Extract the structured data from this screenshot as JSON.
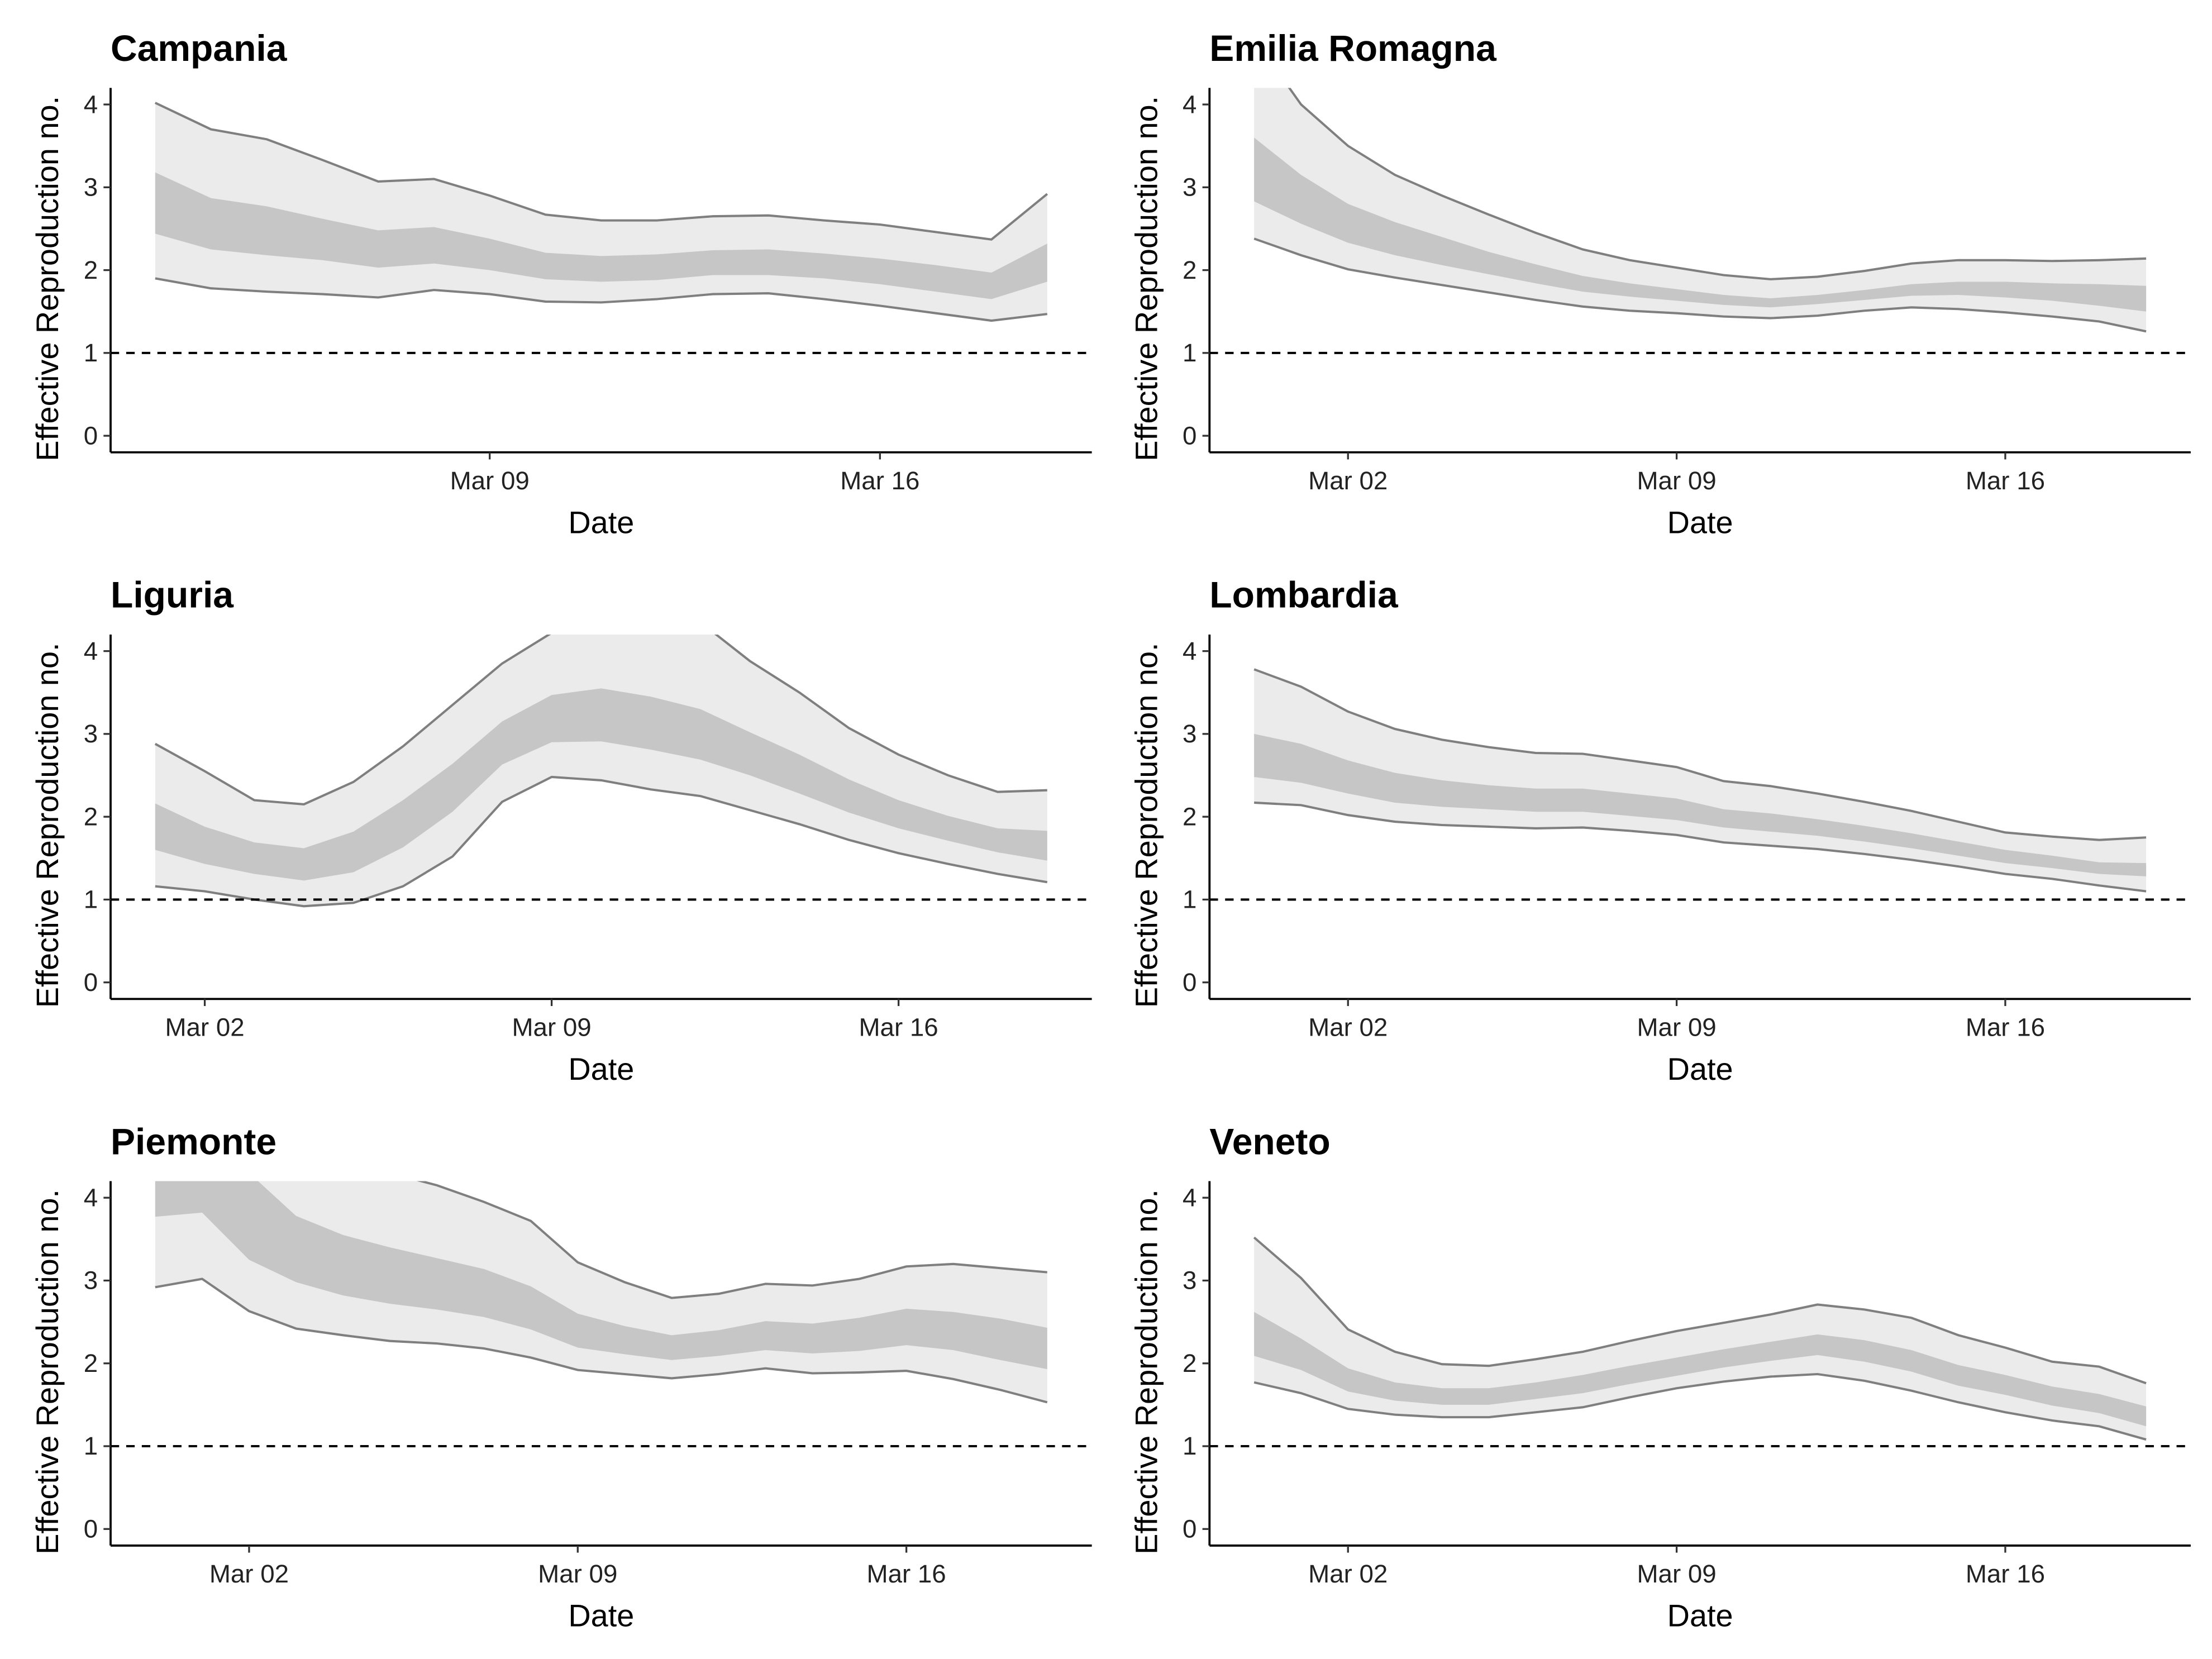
{
  "chart_data": [
    {
      "type": "band",
      "title": "Campania",
      "xlabel": "Date",
      "ylabel": "Effective Reproduction no.",
      "x": [
        "Mar 03",
        "Mar 04",
        "Mar 05",
        "Mar 06",
        "Mar 07",
        "Mar 08",
        "Mar 09",
        "Mar 10",
        "Mar 11",
        "Mar 12",
        "Mar 13",
        "Mar 14",
        "Mar 15",
        "Mar 16",
        "Mar 17",
        "Mar 18",
        "Mar 19"
      ],
      "xticks": [
        "Mar 09",
        "Mar 16"
      ],
      "ylim": [
        -0.2,
        4.2
      ],
      "yticks": [
        0,
        1,
        2,
        3,
        4
      ],
      "hline": 1,
      "series": [
        {
          "color": "#ebebeb",
          "outline": "#7f7f7f",
          "upper": [
            4.02,
            3.7,
            3.58,
            3.33,
            3.07,
            3.1,
            2.9,
            2.67,
            2.6,
            2.6,
            2.65,
            2.66,
            2.6,
            2.55,
            2.46,
            2.37,
            2.92
          ],
          "lower": [
            1.9,
            1.78,
            1.74,
            1.71,
            1.67,
            1.76,
            1.71,
            1.62,
            1.61,
            1.65,
            1.71,
            1.72,
            1.65,
            1.57,
            1.48,
            1.39,
            1.47
          ]
        },
        {
          "color": "#c6c6c6",
          "upper": [
            3.18,
            2.87,
            2.77,
            2.62,
            2.48,
            2.52,
            2.38,
            2.21,
            2.17,
            2.19,
            2.24,
            2.25,
            2.2,
            2.14,
            2.06,
            1.97,
            2.32
          ],
          "lower": [
            2.44,
            2.25,
            2.18,
            2.12,
            2.03,
            2.08,
            2.0,
            1.89,
            1.86,
            1.88,
            1.94,
            1.94,
            1.9,
            1.83,
            1.74,
            1.65,
            1.86
          ]
        }
      ]
    },
    {
      "type": "band",
      "title": "Emilia Romagna",
      "xlabel": "Date",
      "ylabel": "Effective Reproduction no.",
      "x": [
        "Feb 29",
        "Mar 01",
        "Mar 02",
        "Mar 03",
        "Mar 04",
        "Mar 05",
        "Mar 06",
        "Mar 07",
        "Mar 08",
        "Mar 09",
        "Mar 10",
        "Mar 11",
        "Mar 12",
        "Mar 13",
        "Mar 14",
        "Mar 15",
        "Mar 16",
        "Mar 17",
        "Mar 18",
        "Mar 19"
      ],
      "xticks": [
        "Mar 02",
        "Mar 09",
        "Mar 16"
      ],
      "ylim": [
        -0.2,
        4.2
      ],
      "yticks": [
        0,
        1,
        2,
        3,
        4
      ],
      "hline": 1,
      "series": [
        {
          "color": "#ebebeb",
          "outline": "#7f7f7f",
          "upper": [
            4.8,
            4.0,
            3.5,
            3.15,
            2.9,
            2.67,
            2.45,
            2.25,
            2.12,
            2.03,
            1.94,
            1.89,
            1.92,
            1.99,
            2.08,
            2.12,
            2.12,
            2.11,
            2.12,
            2.14
          ],
          "lower": [
            2.38,
            2.18,
            2.01,
            1.91,
            1.82,
            1.73,
            1.64,
            1.56,
            1.51,
            1.48,
            1.44,
            1.42,
            1.45,
            1.51,
            1.55,
            1.53,
            1.49,
            1.44,
            1.38,
            1.26
          ]
        },
        {
          "color": "#c6c6c6",
          "upper": [
            3.6,
            3.15,
            2.8,
            2.58,
            2.4,
            2.22,
            2.07,
            1.93,
            1.84,
            1.77,
            1.7,
            1.66,
            1.7,
            1.76,
            1.83,
            1.86,
            1.86,
            1.84,
            1.83,
            1.81
          ],
          "lower": [
            2.83,
            2.56,
            2.33,
            2.18,
            2.06,
            1.95,
            1.84,
            1.74,
            1.68,
            1.63,
            1.58,
            1.55,
            1.59,
            1.64,
            1.69,
            1.7,
            1.67,
            1.63,
            1.57,
            1.5
          ]
        }
      ]
    },
    {
      "type": "band",
      "title": "Liguria",
      "xlabel": "Date",
      "ylabel": "Effective Reproduction no.",
      "x": [
        "Mar 01",
        "Mar 02",
        "Mar 03",
        "Mar 04",
        "Mar 05",
        "Mar 06",
        "Mar 07",
        "Mar 08",
        "Mar 09",
        "Mar 10",
        "Mar 11",
        "Mar 12",
        "Mar 13",
        "Mar 14",
        "Mar 15",
        "Mar 16",
        "Mar 17",
        "Mar 18",
        "Mar 19"
      ],
      "xticks": [
        "Mar 02",
        "Mar 09",
        "Mar 16"
      ],
      "ylim": [
        -0.2,
        4.2
      ],
      "yticks": [
        0,
        1,
        2,
        3,
        4
      ],
      "hline": 1,
      "series": [
        {
          "color": "#ebebeb",
          "outline": "#7f7f7f",
          "upper": [
            2.88,
            2.55,
            2.2,
            2.15,
            2.42,
            2.85,
            3.35,
            3.85,
            4.22,
            4.4,
            4.45,
            4.35,
            3.88,
            3.5,
            3.07,
            2.75,
            2.5,
            2.3,
            2.32
          ],
          "lower": [
            1.16,
            1.1,
            1.0,
            0.92,
            0.96,
            1.16,
            1.52,
            2.18,
            2.48,
            2.44,
            2.33,
            2.25,
            2.08,
            1.91,
            1.72,
            1.56,
            1.43,
            1.31,
            1.21
          ]
        },
        {
          "color": "#c6c6c6",
          "upper": [
            2.16,
            1.88,
            1.69,
            1.62,
            1.82,
            2.2,
            2.64,
            3.15,
            3.47,
            3.55,
            3.45,
            3.3,
            3.02,
            2.75,
            2.45,
            2.2,
            2.01,
            1.86,
            1.83
          ],
          "lower": [
            1.6,
            1.43,
            1.31,
            1.23,
            1.33,
            1.63,
            2.06,
            2.63,
            2.9,
            2.91,
            2.81,
            2.69,
            2.5,
            2.28,
            2.05,
            1.86,
            1.71,
            1.57,
            1.47
          ]
        }
      ]
    },
    {
      "type": "band",
      "title": "Lombardia",
      "xlabel": "Date",
      "ylabel": "Effective Reproduction no.",
      "x": [
        "Feb 29",
        "Mar 01",
        "Mar 02",
        "Mar 03",
        "Mar 04",
        "Mar 05",
        "Mar 06",
        "Mar 07",
        "Mar 08",
        "Mar 09",
        "Mar 10",
        "Mar 11",
        "Mar 12",
        "Mar 13",
        "Mar 14",
        "Mar 15",
        "Mar 16",
        "Mar 17",
        "Mar 18",
        "Mar 19"
      ],
      "xticks": [
        "Mar 02",
        "Mar 09",
        "Mar 16"
      ],
      "ylim": [
        -0.2,
        4.2
      ],
      "yticks": [
        0,
        1,
        2,
        3,
        4
      ],
      "hline": 1,
      "series": [
        {
          "color": "#ebebeb",
          "outline": "#7f7f7f",
          "upper": [
            3.78,
            3.57,
            3.27,
            3.06,
            2.93,
            2.84,
            2.77,
            2.76,
            2.68,
            2.6,
            2.43,
            2.37,
            2.28,
            2.18,
            2.07,
            1.94,
            1.81,
            1.76,
            1.72,
            1.75
          ],
          "lower": [
            2.17,
            2.14,
            2.02,
            1.94,
            1.9,
            1.88,
            1.86,
            1.87,
            1.83,
            1.78,
            1.69,
            1.65,
            1.61,
            1.55,
            1.48,
            1.4,
            1.31,
            1.25,
            1.17,
            1.1
          ]
        },
        {
          "color": "#c6c6c6",
          "upper": [
            3.0,
            2.88,
            2.68,
            2.53,
            2.44,
            2.38,
            2.34,
            2.34,
            2.28,
            2.22,
            2.09,
            2.04,
            1.97,
            1.89,
            1.8,
            1.7,
            1.6,
            1.53,
            1.45,
            1.44
          ],
          "lower": [
            2.48,
            2.41,
            2.28,
            2.17,
            2.12,
            2.09,
            2.06,
            2.06,
            2.01,
            1.96,
            1.87,
            1.82,
            1.77,
            1.7,
            1.62,
            1.53,
            1.44,
            1.38,
            1.31,
            1.28
          ]
        }
      ]
    },
    {
      "type": "band",
      "title": "Piemonte",
      "xlabel": "Date",
      "ylabel": "Effective Reproduction no.",
      "x": [
        "Feb 29",
        "Mar 01",
        "Mar 02",
        "Mar 03",
        "Mar 04",
        "Mar 05",
        "Mar 06",
        "Mar 07",
        "Mar 08",
        "Mar 09",
        "Mar 10",
        "Mar 11",
        "Mar 12",
        "Mar 13",
        "Mar 14",
        "Mar 15",
        "Mar 16",
        "Mar 17",
        "Mar 18",
        "Mar 19"
      ],
      "xticks": [
        "Mar 02",
        "Mar 09",
        "Mar 16"
      ],
      "ylim": [
        -0.2,
        4.2
      ],
      "yticks": [
        0,
        1,
        2,
        3,
        4
      ],
      "hline": 1,
      "series": [
        {
          "color": "#ebebeb",
          "outline": "#7f7f7f",
          "upper": [
            5.5,
            5.3,
            5.0,
            4.7,
            4.45,
            4.3,
            4.15,
            3.95,
            3.72,
            3.22,
            2.98,
            2.79,
            2.84,
            2.96,
            2.94,
            3.02,
            3.17,
            3.2,
            3.15,
            3.1
          ],
          "lower": [
            2.92,
            3.02,
            2.63,
            2.42,
            2.34,
            2.27,
            2.24,
            2.18,
            2.07,
            1.92,
            1.87,
            1.82,
            1.87,
            1.94,
            1.88,
            1.89,
            1.91,
            1.81,
            1.68,
            1.53
          ]
        },
        {
          "color": "#c6c6c6",
          "upper": [
            4.6,
            4.5,
            4.3,
            3.78,
            3.55,
            3.4,
            3.27,
            3.14,
            2.93,
            2.6,
            2.45,
            2.34,
            2.4,
            2.51,
            2.48,
            2.55,
            2.66,
            2.62,
            2.54,
            2.43
          ],
          "lower": [
            3.77,
            3.82,
            3.25,
            2.98,
            2.82,
            2.72,
            2.65,
            2.56,
            2.41,
            2.19,
            2.11,
            2.04,
            2.09,
            2.16,
            2.12,
            2.15,
            2.22,
            2.16,
            2.04,
            1.93
          ]
        }
      ]
    },
    {
      "type": "band",
      "title": "Veneto",
      "xlabel": "Date",
      "ylabel": "Effective Reproduction no.",
      "x": [
        "Feb 29",
        "Mar 01",
        "Mar 02",
        "Mar 03",
        "Mar 04",
        "Mar 05",
        "Mar 06",
        "Mar 07",
        "Mar 08",
        "Mar 09",
        "Mar 10",
        "Mar 11",
        "Mar 12",
        "Mar 13",
        "Mar 14",
        "Mar 15",
        "Mar 16",
        "Mar 17",
        "Mar 18",
        "Mar 19"
      ],
      "xticks": [
        "Mar 02",
        "Mar 09",
        "Mar 16"
      ],
      "ylim": [
        -0.2,
        4.2
      ],
      "yticks": [
        0,
        1,
        2,
        3,
        4
      ],
      "hline": 1,
      "series": [
        {
          "color": "#ebebeb",
          "outline": "#7f7f7f",
          "upper": [
            3.52,
            3.03,
            2.41,
            2.14,
            1.99,
            1.97,
            2.05,
            2.14,
            2.27,
            2.39,
            2.49,
            2.59,
            2.71,
            2.65,
            2.55,
            2.34,
            2.19,
            2.02,
            1.96,
            1.76
          ],
          "lower": [
            1.77,
            1.64,
            1.45,
            1.38,
            1.35,
            1.35,
            1.41,
            1.47,
            1.59,
            1.7,
            1.78,
            1.84,
            1.87,
            1.79,
            1.67,
            1.53,
            1.41,
            1.31,
            1.24,
            1.08
          ]
        },
        {
          "color": "#c6c6c6",
          "upper": [
            2.62,
            2.3,
            1.94,
            1.77,
            1.7,
            1.7,
            1.77,
            1.86,
            1.97,
            2.07,
            2.17,
            2.26,
            2.35,
            2.28,
            2.16,
            1.98,
            1.86,
            1.72,
            1.63,
            1.48
          ],
          "lower": [
            2.09,
            1.92,
            1.66,
            1.55,
            1.5,
            1.5,
            1.57,
            1.64,
            1.75,
            1.85,
            1.95,
            2.03,
            2.1,
            2.02,
            1.9,
            1.73,
            1.62,
            1.49,
            1.4,
            1.24
          ]
        }
      ]
    }
  ]
}
